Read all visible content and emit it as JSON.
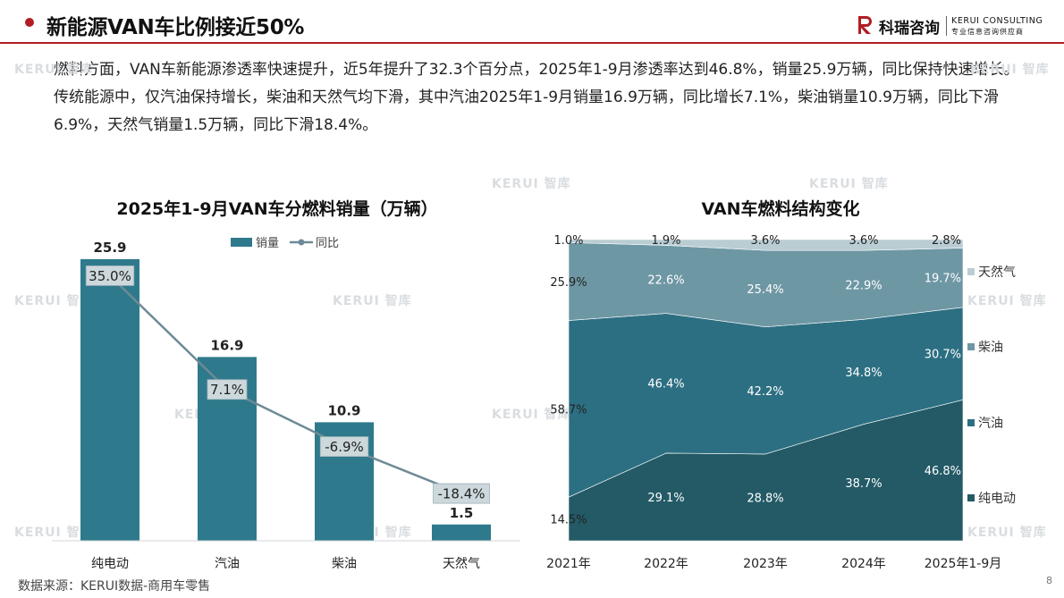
{
  "header": {
    "title": "新能源VAN车比例接近50%",
    "logo_cn": "科瑞咨询",
    "logo_en": "KERUI CONSULTING",
    "logo_sub": "专业信息咨询供应商"
  },
  "body_text": "燃料方面，VAN车新能源渗透率快速提升，近5年提升了32.3个百分点，2025年1-9月渗透率达到46.8%，销量25.9万辆，同比保持快速增长。传统能源中，仅汽油保持增长，柴油和天然气均下滑，其中汽油2025年1-9月销量16.9万辆，同比增长7.1%，柴油销量10.9万辆，同比下滑6.9%，天然气销量1.5万辆，同比下滑18.4%。",
  "watermark": "KERUI 智库",
  "footer": {
    "source": "数据来源：KERUI数据-商用车零售",
    "page": "8"
  },
  "colors": {
    "accent": "#b01e23",
    "bar": "#2e7a8c",
    "line": "#6d8a96",
    "ev": "#235a66",
    "gasoline": "#2d6f82",
    "diesel": "#6e97a4",
    "cng": "#b9cdd3"
  },
  "chart_data": [
    {
      "type": "bar",
      "title": "2025年1-9月VAN车分燃料销量（万辆）",
      "categories": [
        "纯电动",
        "汽油",
        "柴油",
        "天然气"
      ],
      "series": [
        {
          "name": "销量",
          "type": "bar",
          "values": [
            25.9,
            16.9,
            10.9,
            1.5
          ],
          "labels": [
            "25.9",
            "16.9",
            "10.9",
            "1.5"
          ]
        },
        {
          "name": "同比",
          "type": "line",
          "values": [
            35.0,
            7.1,
            -6.9,
            -18.4
          ],
          "labels": [
            "35.0%",
            "7.1%",
            "-6.9%",
            "-18.4%"
          ]
        }
      ],
      "ylim": [
        0,
        30
      ],
      "y2lim": [
        -30,
        50
      ],
      "legend": "top"
    },
    {
      "type": "area",
      "stacked": true,
      "percent": true,
      "title": "VAN车燃料结构变化",
      "categories": [
        "2021年",
        "2022年",
        "2023年",
        "2024年",
        "2025年1-9月"
      ],
      "series": [
        {
          "name": "纯电动",
          "values": [
            14.5,
            29.1,
            28.8,
            38.7,
            46.8
          ],
          "labels": [
            "14.5%",
            "29.1%",
            "28.8%",
            "38.7%",
            "46.8%"
          ]
        },
        {
          "name": "汽油",
          "values": [
            58.7,
            46.4,
            42.2,
            34.8,
            30.7
          ],
          "labels": [
            "58.7%",
            "46.4%",
            "42.2%",
            "34.8%",
            "30.7%"
          ]
        },
        {
          "name": "柴油",
          "values": [
            25.9,
            22.6,
            25.4,
            22.9,
            19.7
          ],
          "labels": [
            "25.9%",
            "22.6%",
            "25.4%",
            "22.9%",
            "19.7%"
          ]
        },
        {
          "name": "天然气",
          "values": [
            1.0,
            1.9,
            3.6,
            3.6,
            2.8
          ],
          "labels": [
            "1.0%",
            "1.9%",
            "3.6%",
            "3.6%",
            "2.8%"
          ]
        }
      ],
      "ylim": [
        0,
        100
      ],
      "legend": "right"
    }
  ]
}
